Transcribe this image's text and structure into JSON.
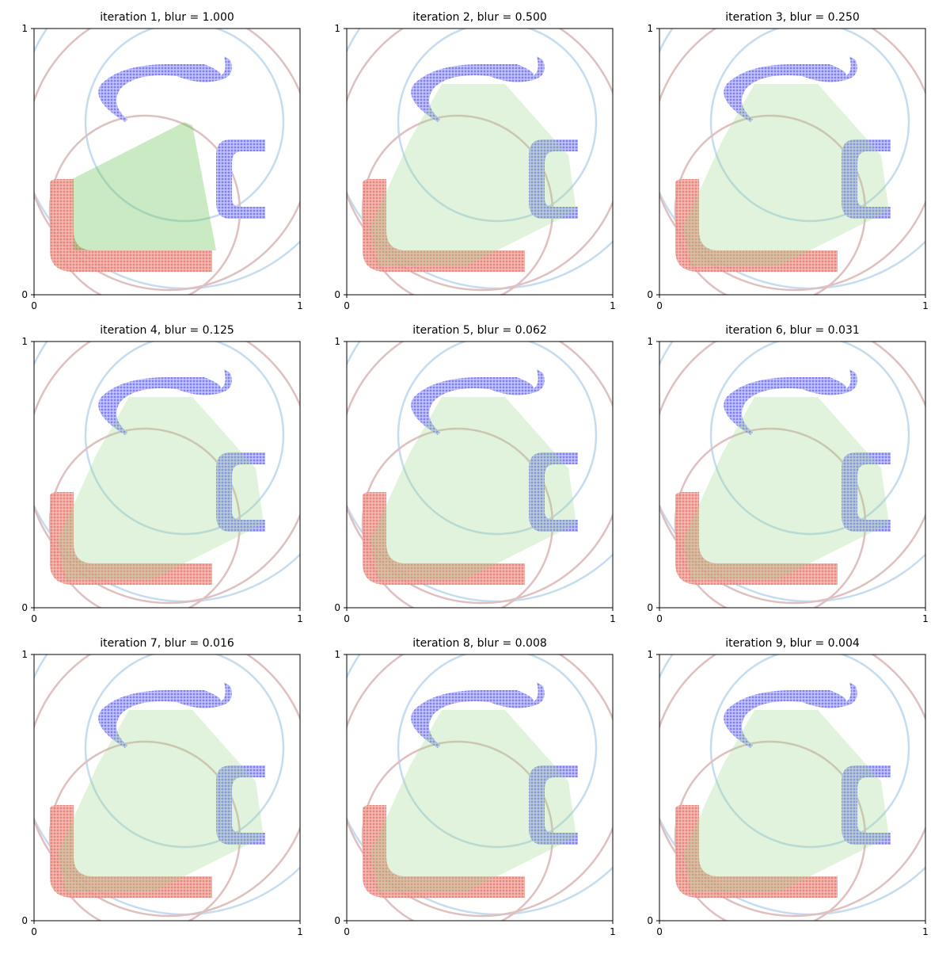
{
  "chart_data": [
    {
      "type": "scatter",
      "title": "iteration 1, blur = 1.000",
      "xlim": [
        0,
        1
      ],
      "ylim": [
        0,
        1
      ],
      "xticks": [
        0,
        1
      ],
      "yticks": [
        0,
        1
      ]
    },
    {
      "type": "scatter",
      "title": "iteration 2, blur = 0.500",
      "xlim": [
        0,
        1
      ],
      "ylim": [
        0,
        1
      ],
      "xticks": [
        0,
        1
      ],
      "yticks": [
        0,
        1
      ]
    },
    {
      "type": "scatter",
      "title": "iteration 3, blur = 0.250",
      "xlim": [
        0,
        1
      ],
      "ylim": [
        0,
        1
      ],
      "xticks": [
        0,
        1
      ],
      "yticks": [
        0,
        1
      ]
    },
    {
      "type": "scatter",
      "title": "iteration 4, blur = 0.125",
      "xlim": [
        0,
        1
      ],
      "ylim": [
        0,
        1
      ],
      "xticks": [
        0,
        1
      ],
      "yticks": [
        0,
        1
      ]
    },
    {
      "type": "scatter",
      "title": "iteration 5, blur = 0.062",
      "xlim": [
        0,
        1
      ],
      "ylim": [
        0,
        1
      ],
      "xticks": [
        0,
        1
      ],
      "yticks": [
        0,
        1
      ]
    },
    {
      "type": "scatter",
      "title": "iteration 6, blur = 0.031",
      "xlim": [
        0,
        1
      ],
      "ylim": [
        0,
        1
      ],
      "xticks": [
        0,
        1
      ],
      "yticks": [
        0,
        1
      ]
    },
    {
      "type": "scatter",
      "title": "iteration 7, blur = 0.016",
      "xlim": [
        0,
        1
      ],
      "ylim": [
        0,
        1
      ],
      "xticks": [
        0,
        1
      ],
      "yticks": [
        0,
        1
      ]
    },
    {
      "type": "scatter",
      "title": "iteration 8, blur = 0.008",
      "xlim": [
        0,
        1
      ],
      "ylim": [
        0,
        1
      ],
      "xticks": [
        0,
        1
      ],
      "yticks": [
        0,
        1
      ]
    },
    {
      "type": "scatter",
      "title": "iteration 9, blur = 0.004",
      "xlim": [
        0,
        1
      ],
      "ylim": [
        0,
        1
      ],
      "xticks": [
        0,
        1
      ],
      "yticks": [
        0,
        1
      ]
    }
  ]
}
